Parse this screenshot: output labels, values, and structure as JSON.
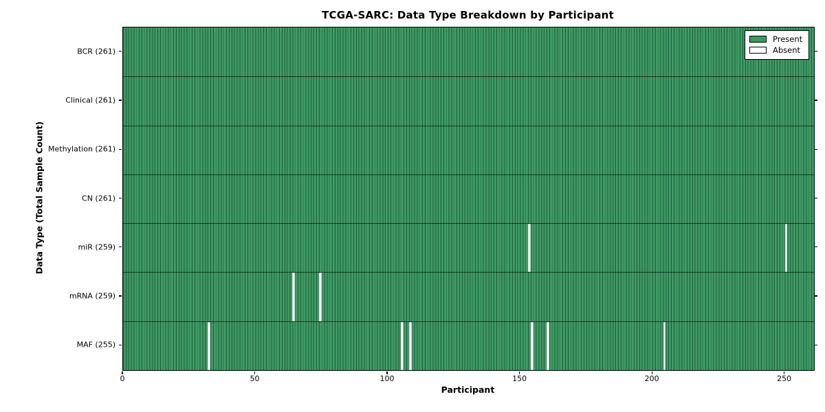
{
  "chart_data": {
    "type": "heatmap",
    "title": "TCGA-SARC: Data Type Breakdown by Participant",
    "xlabel": "Participant",
    "ylabel": "Data Type (Total Sample Count)",
    "x_ticks": [
      0,
      50,
      100,
      150,
      200,
      250
    ],
    "x_range": [
      0,
      261
    ],
    "n_participants": 261,
    "grid": false,
    "legend_position": "upper right",
    "rows": [
      {
        "label": "BCR (261)",
        "data_type": "BCR",
        "present_count": 261,
        "absent_indices": []
      },
      {
        "label": "Clinical (261)",
        "data_type": "Clinical",
        "present_count": 261,
        "absent_indices": []
      },
      {
        "label": "Methylation (261)",
        "data_type": "Methylation",
        "present_count": 261,
        "absent_indices": []
      },
      {
        "label": "CN (261)",
        "data_type": "CN",
        "present_count": 261,
        "absent_indices": []
      },
      {
        "label": "miR (259)",
        "data_type": "miR",
        "present_count": 259,
        "absent_indices": [
          153,
          250
        ]
      },
      {
        "label": "mRNA (259)",
        "data_type": "mRNA",
        "present_count": 259,
        "absent_indices": [
          64,
          74
        ]
      },
      {
        "label": "MAF (255)",
        "data_type": "MAF",
        "present_count": 255,
        "absent_indices": [
          32,
          105,
          108,
          154,
          160,
          204
        ]
      }
    ],
    "legend": [
      {
        "label": "Present",
        "color": "#3a9a62"
      },
      {
        "label": "Absent",
        "color": "#ffffff"
      }
    ],
    "colors": {
      "present": "#3a9a62",
      "absent": "#ffffff",
      "bar_edge": "#1e5536",
      "axis": "#000000"
    }
  }
}
